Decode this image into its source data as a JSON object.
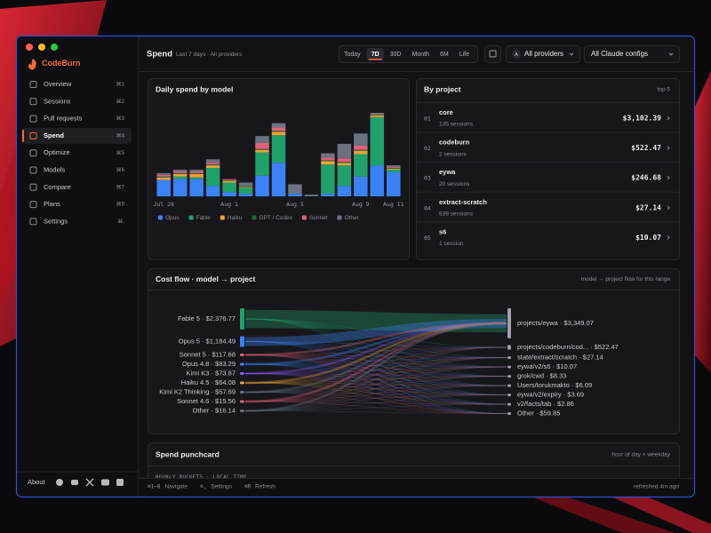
{
  "app": {
    "brand": "CodeBurn"
  },
  "sidebar": {
    "nav": [
      {
        "label": "Overview",
        "shortcut": "⌘1"
      },
      {
        "label": "Sessions",
        "shortcut": "⌘2"
      },
      {
        "label": "Pull requests",
        "shortcut": "⌘3"
      },
      {
        "label": "Spend",
        "shortcut": "⌘4",
        "active": true
      },
      {
        "label": "Optimize",
        "shortcut": "⌘5"
      },
      {
        "label": "Models",
        "shortcut": "⌘6"
      },
      {
        "label": "Compare",
        "shortcut": "⌘7"
      },
      {
        "label": "Plans",
        "shortcut": "⌘8"
      },
      {
        "label": "Settings",
        "shortcut": "⌘,"
      }
    ],
    "about": "About"
  },
  "header": {
    "title": "Spend",
    "subtitle": "Last 7 days · All providers",
    "ranges": [
      {
        "label": "Today"
      },
      {
        "label": "7D",
        "active": true
      },
      {
        "label": "30D"
      },
      {
        "label": "Month"
      },
      {
        "label": "6M"
      },
      {
        "label": "Life"
      }
    ],
    "provider_badge": "A",
    "provider": "All providers",
    "config": "All Claude configs"
  },
  "chart_data": {
    "type": "bar",
    "stacked": true,
    "title": "Daily spend by model",
    "categories": [
      "Jul 28",
      null,
      null,
      null,
      "Aug 1",
      null,
      null,
      null,
      "Aug 5",
      null,
      null,
      null,
      "Aug 9",
      null,
      "Aug 11"
    ],
    "series": [
      {
        "name": "Opus",
        "color": "#3b82f6",
        "values": [
          114,
          120,
          120,
          72,
          30,
          18,
          144,
          234,
          18,
          0,
          18,
          72,
          138,
          216,
          168
        ]
      },
      {
        "name": "Fable",
        "color": "#22a06b",
        "values": [
          0,
          18,
          12,
          126,
          66,
          42,
          162,
          192,
          0,
          0,
          204,
          144,
          156,
          336,
          18
        ]
      },
      {
        "name": "Haiku",
        "color": "#e8a33a",
        "values": [
          18,
          18,
          24,
          18,
          12,
          6,
          18,
          24,
          0,
          0,
          24,
          18,
          24,
          12,
          6
        ]
      },
      {
        "name": "GPT / Codex",
        "color": "#1e6b34",
        "values": [
          6,
          6,
          6,
          6,
          6,
          6,
          6,
          6,
          0,
          0,
          6,
          6,
          6,
          6,
          6
        ]
      },
      {
        "name": "Sonnet",
        "color": "#e0607e",
        "values": [
          12,
          12,
          12,
          12,
          6,
          0,
          42,
          24,
          0,
          0,
          18,
          24,
          30,
          6,
          6
        ]
      },
      {
        "name": "Other",
        "color": "#6b7280",
        "values": [
          12,
          12,
          12,
          24,
          0,
          24,
          48,
          30,
          66,
          12,
          30,
          102,
          84,
          6,
          12
        ]
      }
    ]
  },
  "by_project": {
    "title": "By project",
    "note": "top 5",
    "rows": [
      {
        "rank": "01",
        "name": "core",
        "sessions": "135 sessions",
        "amount": "$3,102.39"
      },
      {
        "rank": "02",
        "name": "codeburn",
        "sessions": "2 sessions",
        "amount": "$522.47"
      },
      {
        "rank": "03",
        "name": "eywa",
        "sessions": "20 sessions",
        "amount": "$246.68"
      },
      {
        "rank": "04",
        "name": "extract-scratch",
        "sessions": "839 sessions",
        "amount": "$27.14"
      },
      {
        "rank": "05",
        "name": "s6",
        "sessions": "1 session",
        "amount": "$10.07"
      }
    ]
  },
  "cost_flow": {
    "title": "Cost flow · model → project",
    "note": "model → project flow for this range",
    "models": [
      {
        "label": "Fable 5 · $2,376.77",
        "value": 2376.77,
        "color": "#22a06b"
      },
      {
        "label": "Opus 5 · $1,184.49",
        "value": 1184.49,
        "color": "#3b82f6"
      },
      {
        "label": "Sonnet 5 · $117.68",
        "value": 117.68,
        "color": "#e0607e"
      },
      {
        "label": "Opus 4.8 · $83.29",
        "value": 83.29,
        "color": "#3b82f6"
      },
      {
        "label": "Kimi K3 · $73.87",
        "value": 73.87,
        "color": "#8b5cf6"
      },
      {
        "label": "Haiku 4.5 · $64.08",
        "value": 64.08,
        "color": "#e8a33a"
      },
      {
        "label": "Kimi K2 Thinking · $57.69",
        "value": 57.69,
        "color": "#6b7280"
      },
      {
        "label": "Sonnet 4.6 · $15.56",
        "value": 15.56,
        "color": "#e0607e"
      },
      {
        "label": "Other · $16.14",
        "value": 16.14,
        "color": "#6b7280"
      }
    ],
    "projects": [
      {
        "label": "projects/eywa · $3,349.07",
        "value": 3349.07
      },
      {
        "label": "projects/codeburn/cod... · $522.47",
        "value": 522.47
      },
      {
        "label": "state/extract/scratch · $27.14",
        "value": 27.14
      },
      {
        "label": "eywa/v2/s6 · $10.07",
        "value": 10.07
      },
      {
        "label": "grok/cwd · $8.33",
        "value": 8.33
      },
      {
        "label": "Users/torukmakto · $6.09",
        "value": 6.09
      },
      {
        "label": "eywa/v2/expiry · $3.69",
        "value": 3.69
      },
      {
        "label": "v2/facts/tab · $2.86",
        "value": 2.86
      },
      {
        "label": "Other · $59.85",
        "value": 59.85
      }
    ]
  },
  "punchcard": {
    "title": "Spend punchcard",
    "note": "hour of day × weekday",
    "subtitle": "HOURLY BUCKETS · LOCAL TIME"
  },
  "status_bar": {
    "hints": [
      {
        "key": "⌘1–8",
        "label": "Navigate"
      },
      {
        "key": "⌘,",
        "label": "Settings"
      },
      {
        "key": "⌘R",
        "label": "Refresh"
      }
    ],
    "refreshed": "refreshed 4m ago"
  }
}
